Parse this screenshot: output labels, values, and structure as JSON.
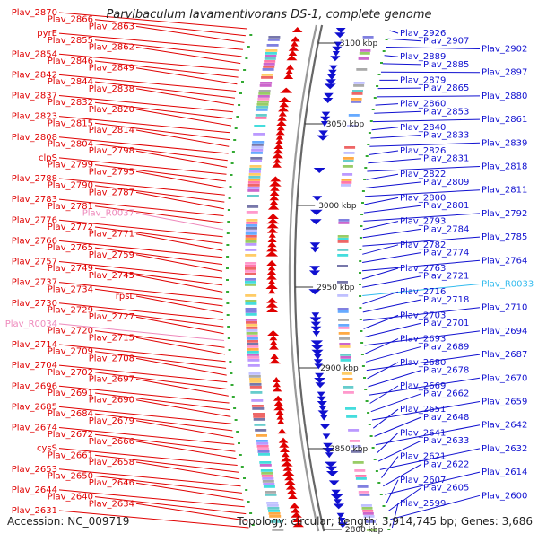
{
  "title": "Parvibaculum lavamentivorans DS-1, complete genome",
  "footer": {
    "accession": "Accession: NC_009719",
    "topology": "Topology: circular; Length: 3,914,745 bp; Genes: 3,686"
  },
  "colors": {
    "forward": "#e00000",
    "reverse": "#1010d0",
    "rna": "#ee88bb",
    "rna_reverse": "#33bbee",
    "backbone": "#888888",
    "tick_mark": "#33aa33"
  },
  "scale_labels": [
    "3100 kbp",
    "3050 kbp",
    "3000 kbp",
    "2950 kbp",
    "2900 kbp",
    "2850 kbp",
    "2800 kbp"
  ],
  "left_labels": [
    {
      "text": "Plav_2870",
      "type": "forward"
    },
    {
      "text": "Plav_2866",
      "type": "forward"
    },
    {
      "text": "Plav_2863",
      "type": "forward"
    },
    {
      "text": "pyrE",
      "type": "forward"
    },
    {
      "text": "Plav_2855",
      "type": "forward"
    },
    {
      "text": "Plav_2862",
      "type": "forward"
    },
    {
      "text": "Plav_2854",
      "type": "forward"
    },
    {
      "text": "Plav_2846",
      "type": "forward"
    },
    {
      "text": "Plav_2849",
      "type": "forward"
    },
    {
      "text": "Plav_2842",
      "type": "forward"
    },
    {
      "text": "Plav_2844",
      "type": "forward"
    },
    {
      "text": "Plav_2838",
      "type": "forward"
    },
    {
      "text": "Plav_2837",
      "type": "forward"
    },
    {
      "text": "Plav_2832",
      "type": "forward"
    },
    {
      "text": "Plav_2820",
      "type": "forward"
    },
    {
      "text": "Plav_2823",
      "type": "forward"
    },
    {
      "text": "Plav_2815",
      "type": "forward"
    },
    {
      "text": "Plav_2814",
      "type": "forward"
    },
    {
      "text": "Plav_2808",
      "type": "forward"
    },
    {
      "text": "Plav_2804",
      "type": "forward"
    },
    {
      "text": "Plav_2798",
      "type": "forward"
    },
    {
      "text": "clpS",
      "type": "forward"
    },
    {
      "text": "Plav_2799",
      "type": "forward"
    },
    {
      "text": "Plav_2795",
      "type": "forward"
    },
    {
      "text": "Plav_2788",
      "type": "forward"
    },
    {
      "text": "Plav_2790",
      "type": "forward"
    },
    {
      "text": "Plav_2787",
      "type": "forward"
    },
    {
      "text": "Plav_2783",
      "type": "forward"
    },
    {
      "text": "Plav_2781",
      "type": "forward"
    },
    {
      "text": "Plav_R0037",
      "type": "rna"
    },
    {
      "text": "Plav_2776",
      "type": "forward"
    },
    {
      "text": "Plav_2772",
      "type": "forward"
    },
    {
      "text": "Plav_2771",
      "type": "forward"
    },
    {
      "text": "Plav_2766",
      "type": "forward"
    },
    {
      "text": "Plav_2765",
      "type": "forward"
    },
    {
      "text": "Plav_2759",
      "type": "forward"
    },
    {
      "text": "Plav_2757",
      "type": "forward"
    },
    {
      "text": "Plav_2749",
      "type": "forward"
    },
    {
      "text": "Plav_2745",
      "type": "forward"
    },
    {
      "text": "Plav_2737",
      "type": "forward"
    },
    {
      "text": "Plav_2734",
      "type": "forward"
    },
    {
      "text": "rpsL",
      "type": "forward"
    },
    {
      "text": "Plav_2730",
      "type": "forward"
    },
    {
      "text": "Plav_2729",
      "type": "forward"
    },
    {
      "text": "Plav_2727",
      "type": "forward"
    },
    {
      "text": "Plav_R0034",
      "type": "rna"
    },
    {
      "text": "Plav_2720",
      "type": "forward"
    },
    {
      "text": "Plav_2715",
      "type": "forward"
    },
    {
      "text": "Plav_2714",
      "type": "forward"
    },
    {
      "text": "Plav_2709",
      "type": "forward"
    },
    {
      "text": "Plav_2708",
      "type": "forward"
    },
    {
      "text": "Plav_2704",
      "type": "forward"
    },
    {
      "text": "Plav_2702",
      "type": "forward"
    },
    {
      "text": "Plav_2697",
      "type": "forward"
    },
    {
      "text": "Plav_2696",
      "type": "forward"
    },
    {
      "text": "Plav_2691",
      "type": "forward"
    },
    {
      "text": "Plav_2690",
      "type": "forward"
    },
    {
      "text": "Plav_2685",
      "type": "forward"
    },
    {
      "text": "Plav_2684",
      "type": "forward"
    },
    {
      "text": "Plav_2679",
      "type": "forward"
    },
    {
      "text": "Plav_2674",
      "type": "forward"
    },
    {
      "text": "Plav_2672",
      "type": "forward"
    },
    {
      "text": "Plav_2666",
      "type": "forward"
    },
    {
      "text": "cysS",
      "type": "forward"
    },
    {
      "text": "Plav_2661",
      "type": "forward"
    },
    {
      "text": "Plav_2658",
      "type": "forward"
    },
    {
      "text": "Plav_2653",
      "type": "forward"
    },
    {
      "text": "Plav_2650",
      "type": "forward"
    },
    {
      "text": "Plav_2646",
      "type": "forward"
    },
    {
      "text": "Plav_2644",
      "type": "forward"
    },
    {
      "text": "Plav_2640",
      "type": "forward"
    },
    {
      "text": "Plav_2634",
      "type": "forward"
    },
    {
      "text": "Plav_2631",
      "type": "forward"
    }
  ],
  "right_labels": [
    {
      "text": "Plav_2926",
      "type": "reverse"
    },
    {
      "text": "Plav_2907",
      "type": "reverse"
    },
    {
      "text": "Plav_2902",
      "type": "reverse"
    },
    {
      "text": "Plav_2889",
      "type": "reverse"
    },
    {
      "text": "Plav_2885",
      "type": "reverse"
    },
    {
      "text": "Plav_2897",
      "type": "reverse"
    },
    {
      "text": "Plav_2879",
      "type": "reverse"
    },
    {
      "text": "Plav_2865",
      "type": "reverse"
    },
    {
      "text": "Plav_2880",
      "type": "reverse"
    },
    {
      "text": "Plav_2860",
      "type": "reverse"
    },
    {
      "text": "Plav_2853",
      "type": "reverse"
    },
    {
      "text": "Plav_2861",
      "type": "reverse"
    },
    {
      "text": "Plav_2840",
      "type": "reverse"
    },
    {
      "text": "Plav_2833",
      "type": "reverse"
    },
    {
      "text": "Plav_2839",
      "type": "reverse"
    },
    {
      "text": "Plav_2826",
      "type": "reverse"
    },
    {
      "text": "Plav_2831",
      "type": "reverse"
    },
    {
      "text": "Plav_2818",
      "type": "reverse"
    },
    {
      "text": "Plav_2822",
      "type": "reverse"
    },
    {
      "text": "Plav_2809",
      "type": "reverse"
    },
    {
      "text": "Plav_2811",
      "type": "reverse"
    },
    {
      "text": "Plav_2800",
      "type": "reverse"
    },
    {
      "text": "Plav_2801",
      "type": "reverse"
    },
    {
      "text": "Plav_2792",
      "type": "reverse"
    },
    {
      "text": "Plav_2793",
      "type": "reverse"
    },
    {
      "text": "Plav_2784",
      "type": "reverse"
    },
    {
      "text": "Plav_2785",
      "type": "reverse"
    },
    {
      "text": "Plav_2782",
      "type": "reverse"
    },
    {
      "text": "Plav_2774",
      "type": "reverse"
    },
    {
      "text": "Plav_2764",
      "type": "reverse"
    },
    {
      "text": "Plav_2763",
      "type": "reverse"
    },
    {
      "text": "Plav_2721",
      "type": "reverse"
    },
    {
      "text": "Plav_R0033",
      "type": "rna_reverse"
    },
    {
      "text": "Plav_2716",
      "type": "reverse"
    },
    {
      "text": "Plav_2718",
      "type": "reverse"
    },
    {
      "text": "Plav_2710",
      "type": "reverse"
    },
    {
      "text": "Plav_2703",
      "type": "reverse"
    },
    {
      "text": "Plav_2701",
      "type": "reverse"
    },
    {
      "text": "Plav_2694",
      "type": "reverse"
    },
    {
      "text": "Plav_2693",
      "type": "reverse"
    },
    {
      "text": "Plav_2689",
      "type": "reverse"
    },
    {
      "text": "Plav_2687",
      "type": "reverse"
    },
    {
      "text": "Plav_2680",
      "type": "reverse"
    },
    {
      "text": "Plav_2678",
      "type": "reverse"
    },
    {
      "text": "Plav_2670",
      "type": "reverse"
    },
    {
      "text": "Plav_2669",
      "type": "reverse"
    },
    {
      "text": "Plav_2662",
      "type": "reverse"
    },
    {
      "text": "Plav_2659",
      "type": "reverse"
    },
    {
      "text": "Plav_2651",
      "type": "reverse"
    },
    {
      "text": "Plav_2648",
      "type": "reverse"
    },
    {
      "text": "Plav_2642",
      "type": "reverse"
    },
    {
      "text": "Plav_2641",
      "type": "reverse"
    },
    {
      "text": "Plav_2633",
      "type": "reverse"
    },
    {
      "text": "Plav_2632",
      "type": "reverse"
    },
    {
      "text": "Plav_2621",
      "type": "reverse"
    },
    {
      "text": "Plav_2622",
      "type": "reverse"
    },
    {
      "text": "Plav_2614",
      "type": "reverse"
    },
    {
      "text": "Plav_2607",
      "type": "reverse"
    },
    {
      "text": "Plav_2605",
      "type": "reverse"
    },
    {
      "text": "Plav_2600",
      "type": "reverse"
    },
    {
      "text": "Plav_2599",
      "type": "reverse"
    }
  ]
}
